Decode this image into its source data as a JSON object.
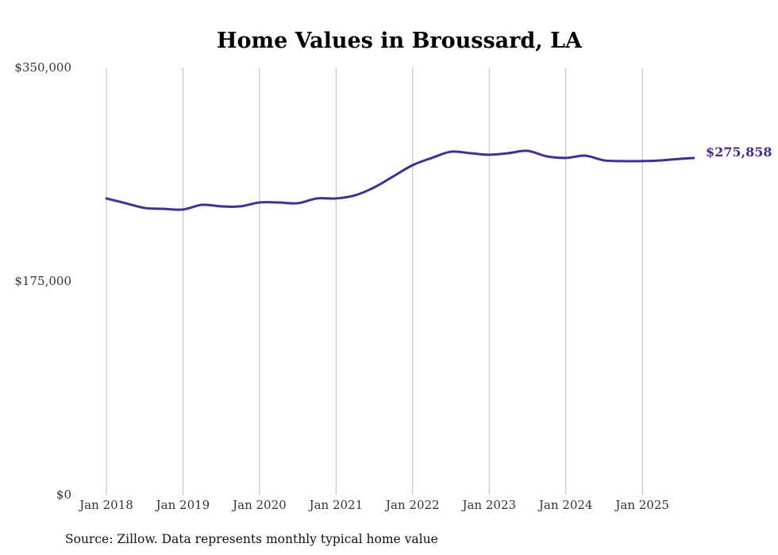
{
  "chart_data": {
    "type": "line",
    "title": "Home Values in Broussard, LA",
    "xlabel": "",
    "ylabel": "",
    "ylim": [
      0,
      350000
    ],
    "y_ticks": [
      0,
      175000,
      350000
    ],
    "y_tick_labels": [
      "$0",
      "$175,000",
      "$350,000"
    ],
    "x_ticks": [
      2018,
      2019,
      2020,
      2021,
      2022,
      2023,
      2024,
      2025
    ],
    "x_tick_labels": [
      "Jan 2018",
      "Jan 2019",
      "Jan 2020",
      "Jan 2021",
      "Jan 2022",
      "Jan 2023",
      "Jan 2024",
      "Jan 2025"
    ],
    "grid": "vertical",
    "series": [
      {
        "name": "Typical home value",
        "color": "#3b3292",
        "x": [
          2018.0,
          2018.25,
          2018.5,
          2018.75,
          2019.0,
          2019.25,
          2019.5,
          2019.75,
          2020.0,
          2020.25,
          2020.5,
          2020.75,
          2021.0,
          2021.25,
          2021.5,
          2021.75,
          2022.0,
          2022.25,
          2022.5,
          2022.75,
          2023.0,
          2023.25,
          2023.5,
          2023.75,
          2024.0,
          2024.25,
          2024.5,
          2024.75,
          2025.0,
          2025.25,
          2025.5,
          2025.67
        ],
        "values": [
          242700,
          238800,
          234900,
          234200,
          233600,
          237500,
          236200,
          236200,
          239400,
          239400,
          238800,
          242700,
          242700,
          245300,
          251800,
          260900,
          270000,
          275900,
          281000,
          279800,
          278500,
          279800,
          281700,
          277200,
          275900,
          277800,
          273900,
          273300,
          273300,
          273900,
          275200,
          275858
        ]
      }
    ],
    "end_label": "$275,858",
    "source": "Source: Zillow. Data represents monthly typical home value"
  }
}
